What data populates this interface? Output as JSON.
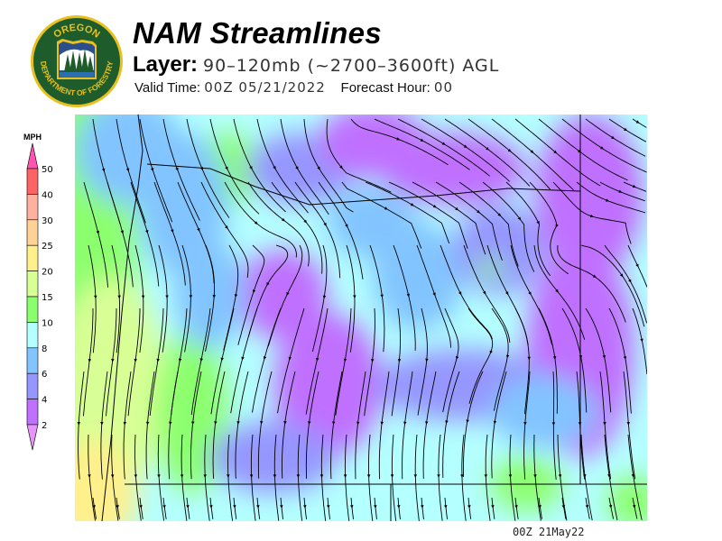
{
  "logo": {
    "top_text": "OREGON",
    "bottom_text": "DEPARTMENT OF FORESTRY",
    "colors": {
      "ring": "#e8c020",
      "field": "#1f5c2c"
    }
  },
  "header": {
    "title": "NAM Streamlines",
    "layer_label": "Layer:",
    "layer_value": "90–120mb (~2700–3600ft) AGL",
    "valid_label": "Valid Time:",
    "valid_value": "00Z 05/21/2022",
    "forecast_label": "Forecast Hour:",
    "forecast_value": "00"
  },
  "legend": {
    "unit": "MPH",
    "ticks": [
      "50",
      "40",
      "30",
      "25",
      "20",
      "15",
      "10",
      "8",
      "6",
      "4",
      "2"
    ],
    "colors": {
      "above_50": "#ff55b0",
      "40-50": "#ff6464",
      "30-40": "#ffb0a0",
      "25-30": "#ffd296",
      "20-25": "#fff08c",
      "15-20": "#d8ff96",
      "10-15": "#8cff6e",
      "8-10": "#b4ffff",
      "6-8": "#82c4ff",
      "4-6": "#9696ff",
      "2-4": "#c070ff",
      "below_2": "#e696f8"
    }
  },
  "map": {
    "layer": "wind streamlines over Oregon",
    "streamline_color": "#000000",
    "border_color": "#000000"
  },
  "footer": {
    "timestamp": "00Z 21May22"
  }
}
